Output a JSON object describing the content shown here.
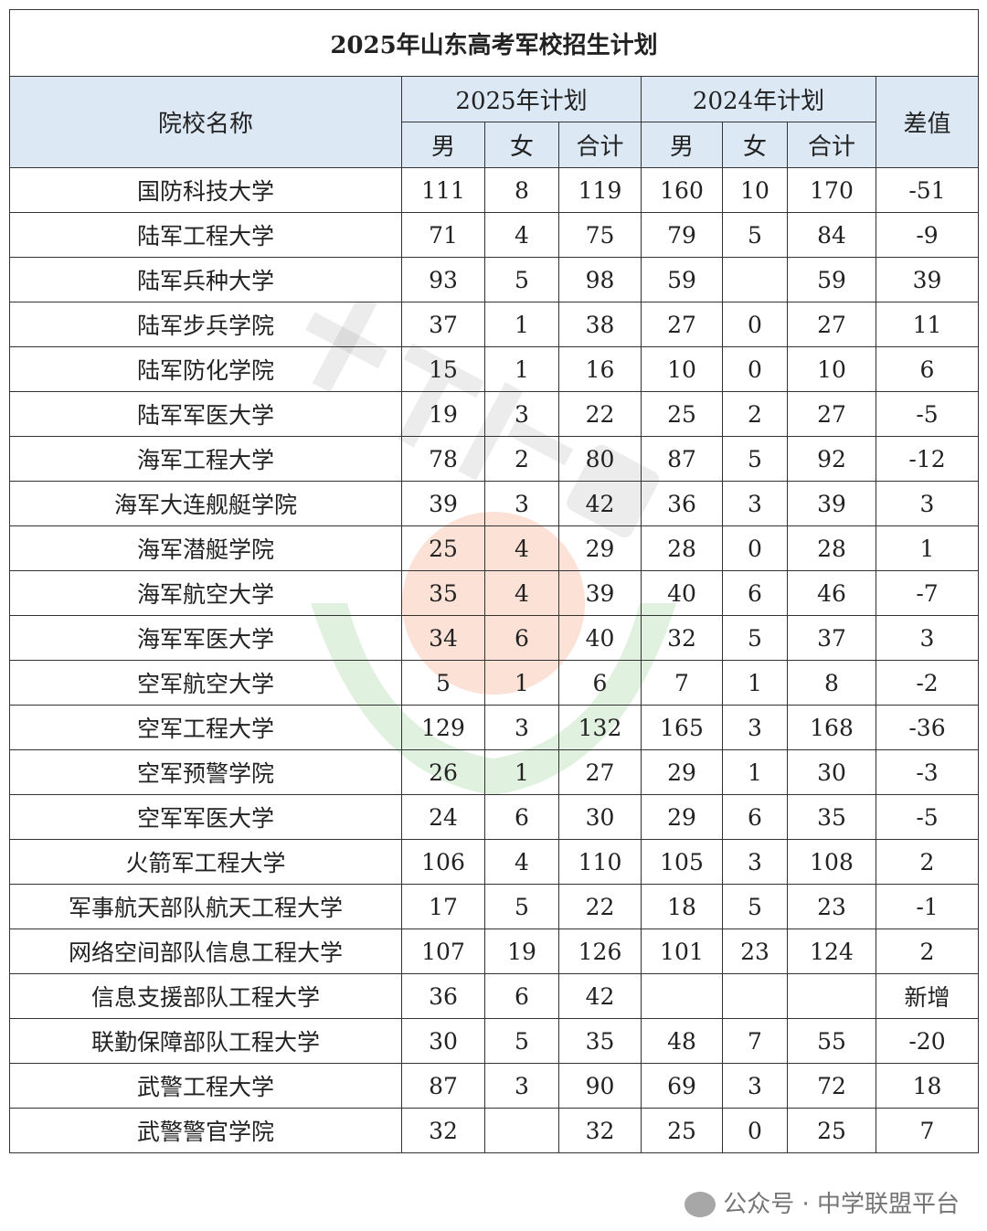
{
  "title": "2025年山东高考军校招生计划",
  "headers": {
    "school": "院校名称",
    "plan2025": "2025年计划",
    "plan2024": "2024年计划",
    "diff": "差值",
    "sub": [
      "男",
      "女",
      "合计",
      "男",
      "女",
      "合计"
    ]
  },
  "rows": [
    [
      "国防科技大学",
      "111",
      "8",
      "119",
      "160",
      "10",
      "170",
      "-51"
    ],
    [
      "陆军工程大学",
      "71",
      "4",
      "75",
      "79",
      "5",
      "84",
      "-9"
    ],
    [
      "陆军兵种大学",
      "93",
      "5",
      "98",
      "59",
      "",
      "59",
      "39"
    ],
    [
      "陆军步兵学院",
      "37",
      "1",
      "38",
      "27",
      "0",
      "27",
      "11"
    ],
    [
      "陆军防化学院",
      "15",
      "1",
      "16",
      "10",
      "0",
      "10",
      "6"
    ],
    [
      "陆军军医大学",
      "19",
      "3",
      "22",
      "25",
      "2",
      "27",
      "-5"
    ],
    [
      "海军工程大学",
      "78",
      "2",
      "80",
      "87",
      "5",
      "92",
      "-12"
    ],
    [
      "海军大连舰艇学院",
      "39",
      "3",
      "42",
      "36",
      "3",
      "39",
      "3"
    ],
    [
      "海军潜艇学院",
      "25",
      "4",
      "29",
      "28",
      "0",
      "28",
      "1"
    ],
    [
      "海军航空大学",
      "35",
      "4",
      "39",
      "40",
      "6",
      "46",
      "-7"
    ],
    [
      "海军军医大学",
      "34",
      "6",
      "40",
      "32",
      "5",
      "37",
      "3"
    ],
    [
      "空军航空大学",
      "5",
      "1",
      "6",
      "7",
      "1",
      "8",
      "-2"
    ],
    [
      "空军工程大学",
      "129",
      "3",
      "132",
      "165",
      "3",
      "168",
      "-36"
    ],
    [
      "空军预警学院",
      "26",
      "1",
      "27",
      "29",
      "1",
      "30",
      "-3"
    ],
    [
      "空军军医大学",
      "24",
      "6",
      "30",
      "29",
      "6",
      "35",
      "-5"
    ],
    [
      "火箭军工程大学",
      "106",
      "4",
      "110",
      "105",
      "3",
      "108",
      "2"
    ],
    [
      "军事航天部队航天工程大学",
      "17",
      "5",
      "22",
      "18",
      "5",
      "23",
      "-1"
    ],
    [
      "网络空间部队信息工程大学",
      "107",
      "19",
      "126",
      "101",
      "23",
      "124",
      "2"
    ],
    [
      "信息支援部队工程大学",
      "36",
      "6",
      "42",
      "",
      "",
      "",
      "新增"
    ],
    [
      "联勤保障部队工程大学",
      "30",
      "5",
      "35",
      "48",
      "7",
      "55",
      "-20"
    ],
    [
      "武警工程大学",
      "87",
      "3",
      "90",
      "69",
      "3",
      "72",
      "18"
    ],
    [
      "武警警官学院",
      "32",
      "",
      "32",
      "25",
      "0",
      "25",
      "7"
    ]
  ],
  "watermark": {
    "logo_text": "中学联盟",
    "footer": "公众号 · 中学联盟平台",
    "icon": "wechat-icon"
  },
  "colors": {
    "header_bg": "#dce9f5",
    "border": "#333333"
  }
}
